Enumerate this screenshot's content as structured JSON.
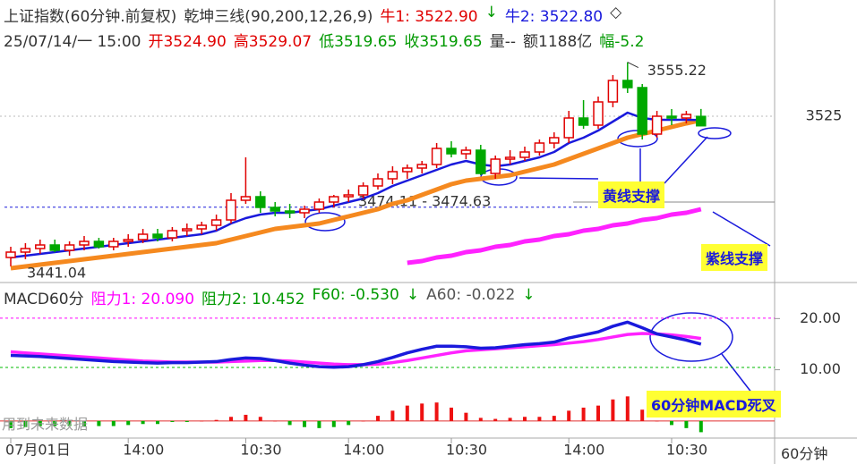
{
  "chart_data": [
    {
      "type": "candlestick",
      "header": [
        {
          "text": "上证指数(60分钟.前复权)",
          "color": "#333333"
        },
        {
          "text": "乾坤三线(90,200,12,26,9)",
          "color": "#333333"
        },
        {
          "text": "牛1: 3522.90",
          "color": "#e00000"
        },
        {
          "text": "↓",
          "color": "#009900"
        },
        {
          "text": "牛2: 3522.80",
          "color": "#1a1adc"
        },
        {
          "text": "◇",
          "color": "#333333"
        }
      ],
      "subheader": [
        {
          "text": "25/07/14/一 15:00",
          "color": "#333333"
        },
        {
          "text": "开3524.90",
          "color": "#e00000"
        },
        {
          "text": "高3529.07",
          "color": "#e00000"
        },
        {
          "text": "低3519.65",
          "color": "#009900"
        },
        {
          "text": "收3519.65",
          "color": "#009900"
        },
        {
          "text": "量--",
          "color": "#333333"
        },
        {
          "text": "额1188亿",
          "color": "#333333"
        },
        {
          "text": "幅-5.2",
          "color": "#009900"
        }
      ],
      "categories": [
        "07月01日",
        null,
        null,
        null,
        null,
        null,
        null,
        null,
        "14:00",
        null,
        null,
        null,
        null,
        null,
        null,
        null,
        "10:30",
        null,
        null,
        null,
        null,
        null,
        null,
        "14:00",
        null,
        null,
        null,
        null,
        null,
        null,
        "10:30",
        null,
        null,
        null,
        null,
        null,
        null,
        null,
        "14:00",
        null,
        null,
        null,
        null,
        null,
        null,
        "10:30",
        null,
        null
      ],
      "open": [
        3446,
        3449,
        3451,
        3453,
        3450,
        3453,
        3455,
        3452,
        3455,
        3456,
        3459,
        3457,
        3461,
        3462,
        3464,
        3467,
        3478,
        3480,
        3474,
        3472,
        3471,
        3473,
        3477,
        3480,
        3481,
        3486,
        3490,
        3494,
        3496,
        3498,
        3507,
        3504,
        3506,
        3493,
        3501,
        3502,
        3505,
        3510,
        3513,
        3524,
        3520,
        3533,
        3545,
        3541,
        3515,
        3525,
        3524,
        3524.9
      ],
      "high": [
        3452,
        3454,
        3456,
        3456,
        3455,
        3458,
        3457,
        3457,
        3459,
        3462,
        3462,
        3463,
        3465,
        3466,
        3470,
        3482,
        3502,
        3483,
        3477,
        3476,
        3475,
        3479,
        3481,
        3484,
        3488,
        3493,
        3497,
        3498,
        3500,
        3510,
        3511,
        3508,
        3509,
        3503,
        3506,
        3508,
        3512,
        3516,
        3528,
        3534,
        3536,
        3548,
        3555.22,
        3543,
        3528,
        3529,
        3528,
        3529.07
      ],
      "low": [
        3441.04,
        3445,
        3448,
        3449,
        3447,
        3450,
        3451,
        3450,
        3452,
        3454,
        3455,
        3455,
        3458,
        3459,
        3461,
        3465,
        3476,
        3471,
        3469,
        3468,
        3468,
        3471,
        3474,
        3477,
        3479,
        3484,
        3487,
        3490,
        3493,
        3496,
        3502,
        3501,
        3492,
        3490,
        3498,
        3500,
        3503,
        3507,
        3510,
        3518,
        3518,
        3530,
        3538,
        3512,
        3513,
        3520,
        3521,
        3519.65
      ],
      "close": [
        3449,
        3451,
        3453,
        3450,
        3453,
        3455,
        3452,
        3455,
        3456,
        3459,
        3457,
        3461,
        3462,
        3464,
        3467,
        3478,
        3480,
        3474,
        3472,
        3471,
        3473,
        3477,
        3480,
        3481,
        3486,
        3490,
        3494,
        3496,
        3498,
        3507,
        3504,
        3506,
        3493,
        3501,
        3502,
        3505,
        3510,
        3513,
        3524,
        3520,
        3533,
        3545,
        3541,
        3515,
        3525,
        3524,
        3526,
        3519.65
      ],
      "up_color": "#e00000",
      "down_color": "#00a800",
      "series": [
        {
          "name": "牛1",
          "color": "#1a1adc",
          "values": [
            3446,
            3447,
            3448,
            3449,
            3450,
            3451,
            3452,
            3453,
            3454,
            3455,
            3456,
            3457,
            3458,
            3459,
            3461,
            3465,
            3468,
            3470,
            3471,
            3471,
            3472,
            3473,
            3475,
            3477,
            3479,
            3482,
            3486,
            3489,
            3492,
            3495,
            3498,
            3500,
            3498,
            3497,
            3498,
            3500,
            3502,
            3505,
            3510,
            3513,
            3517,
            3522,
            3527,
            3524,
            3523,
            3523,
            3523,
            3522.9
          ]
        },
        {
          "name": "牛2",
          "color": "#f5891f",
          "values": [
            3440,
            3441,
            3442,
            3443,
            3444,
            3445,
            3446,
            3447,
            3448,
            3449,
            3450,
            3451,
            3452,
            3453,
            3454,
            3456,
            3458,
            3460,
            3462,
            3463,
            3464,
            3465,
            3467,
            3469,
            3471,
            3473,
            3476,
            3478,
            3481,
            3484,
            3487,
            3489,
            3490,
            3491,
            3492,
            3494,
            3496,
            3498,
            3501,
            3504,
            3507,
            3510,
            3513,
            3515,
            3517,
            3519,
            3521,
            3522.8
          ]
        },
        {
          "name": "紫线",
          "color": "#ff22ff",
          "values": [
            null,
            null,
            null,
            null,
            null,
            null,
            null,
            null,
            null,
            null,
            null,
            null,
            null,
            null,
            null,
            null,
            null,
            null,
            null,
            null,
            null,
            null,
            null,
            null,
            null,
            null,
            null,
            3443,
            3444,
            3446,
            3447,
            3449,
            3450,
            3452,
            3453,
            3455,
            3456,
            3458,
            3459,
            3461,
            3462,
            3464,
            3465,
            3467,
            3468,
            3470,
            3471,
            3473
          ]
        }
      ],
      "high_label": "3555.22",
      "low_label": "3441.04",
      "level": {
        "value": 3474.11,
        "label": "3474.11 - 3474.63",
        "color": "#1a1adc"
      },
      "ylim": [
        3435,
        3561
      ],
      "yticks": [
        3525
      ],
      "grid": true,
      "annotations": [
        "黄线支撑",
        "紫线支撑"
      ]
    },
    {
      "type": "macd",
      "header": [
        {
          "text": "MACD60分",
          "color": "#333333"
        },
        {
          "text": "阻力1: 20.090",
          "color": "#ff00ff"
        },
        {
          "text": "阻力2: 10.452",
          "color": "#009900"
        },
        {
          "text": "F60: -0.530",
          "color": "#009900"
        },
        {
          "text": "↓",
          "color": "#009900"
        },
        {
          "text": "A60: -0.022",
          "color": "#555555"
        },
        {
          "text": "↓",
          "color": "#009900"
        }
      ],
      "levels": [
        {
          "value": 20.09,
          "color": "#ff00ff"
        },
        {
          "value": 10.452,
          "color": "#00bb00"
        }
      ],
      "series": [
        {
          "name": "DIF",
          "color": "#1a1adc",
          "values": [
            12.8,
            12.7,
            12.6,
            12.4,
            12.2,
            12.0,
            11.8,
            11.6,
            11.5,
            11.4,
            11.3,
            11.4,
            11.4,
            11.5,
            11.6,
            12.0,
            12.3,
            12.2,
            11.8,
            11.3,
            10.9,
            10.6,
            10.5,
            10.6,
            11.0,
            11.6,
            12.4,
            13.3,
            14.0,
            14.6,
            14.6,
            14.5,
            14.2,
            14.3,
            14.6,
            14.9,
            15.1,
            15.4,
            16.2,
            16.8,
            17.4,
            18.5,
            19.3,
            18.2,
            17.0,
            16.4,
            15.8,
            15.0
          ]
        },
        {
          "name": "DEA",
          "color": "#ff22ff",
          "values": [
            13.5,
            13.3,
            13.1,
            12.9,
            12.7,
            12.5,
            12.3,
            12.1,
            11.9,
            11.7,
            11.6,
            11.5,
            11.5,
            11.5,
            11.5,
            11.6,
            11.7,
            11.8,
            11.8,
            11.7,
            11.5,
            11.3,
            11.1,
            11.0,
            11.0,
            11.1,
            11.4,
            11.8,
            12.3,
            12.8,
            13.3,
            13.7,
            13.9,
            14.1,
            14.3,
            14.5,
            14.7,
            14.9,
            15.2,
            15.5,
            15.9,
            16.4,
            16.9,
            17.1,
            17.0,
            16.8,
            16.5,
            16.1
          ]
        }
      ],
      "histogram": [
        -1.4,
        -1.2,
        -1.0,
        -1.0,
        -1.0,
        -1.0,
        -1.0,
        -1.0,
        -0.8,
        -0.6,
        -0.6,
        -0.2,
        -0.2,
        0,
        0.2,
        0.8,
        1.2,
        0.8,
        0,
        -0.8,
        -1.2,
        -1.4,
        -1.2,
        -0.8,
        0,
        1.0,
        2.0,
        3.0,
        3.4,
        3.6,
        2.6,
        1.6,
        0.6,
        0.4,
        0.6,
        0.8,
        0.8,
        1.0,
        2.0,
        2.6,
        3.0,
        4.2,
        4.8,
        2.2,
        0,
        -0.8,
        -1.4,
        -2.2
      ],
      "pos_color": "#ee1111",
      "neg_color": "#00b000",
      "ylim": [
        -3,
        26
      ],
      "yticks": [
        {
          "value": 20,
          "label": "20.00"
        },
        {
          "value": 10,
          "label": "10.00"
        }
      ],
      "annotations": [
        "60分钟MACD死叉",
        "用到未来数据"
      ]
    }
  ],
  "period_label": "60分钟"
}
